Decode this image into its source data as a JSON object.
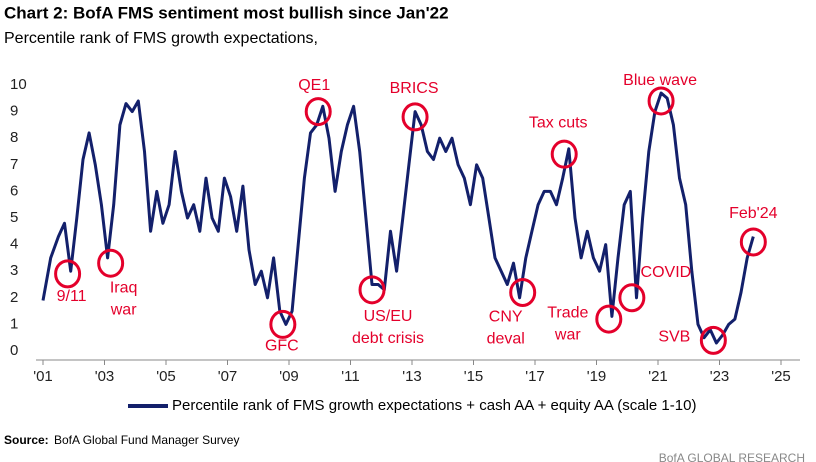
{
  "chart_data": {
    "type": "line",
    "title": "Chart 2: BofA FMS sentiment most bullish since Jan'22",
    "subtitle": "Percentile rank of FMS growth expectations,",
    "xlim": [
      2001,
      2025
    ],
    "xticks": [
      {
        "value": 2001,
        "label": "'01"
      },
      {
        "value": 2003,
        "label": "'03"
      },
      {
        "value": 2005,
        "label": "'05"
      },
      {
        "value": 2007,
        "label": "'07"
      },
      {
        "value": 2009,
        "label": "'09"
      },
      {
        "value": 2011,
        "label": "'11"
      },
      {
        "value": 2013,
        "label": "'13"
      },
      {
        "value": 2015,
        "label": "'15"
      },
      {
        "value": 2017,
        "label": "'17"
      },
      {
        "value": 2019,
        "label": "'19"
      },
      {
        "value": 2021,
        "label": "'21"
      },
      {
        "value": 2023,
        "label": "'23"
      },
      {
        "value": 2025,
        "label": "'25"
      }
    ],
    "ylim": [
      0,
      10
    ],
    "yticks": [
      0,
      1,
      2,
      3,
      4,
      5,
      6,
      7,
      8,
      9,
      10
    ],
    "grid": false,
    "x": [
      2001.0,
      2001.25,
      2001.5,
      2001.7,
      2001.9,
      2002.1,
      2002.3,
      2002.5,
      2002.7,
      2002.9,
      2003.1,
      2003.3,
      2003.5,
      2003.7,
      2003.9,
      2004.1,
      2004.3,
      2004.5,
      2004.7,
      2004.9,
      2005.1,
      2005.3,
      2005.5,
      2005.7,
      2005.9,
      2006.1,
      2006.3,
      2006.5,
      2006.7,
      2006.9,
      2007.1,
      2007.3,
      2007.5,
      2007.7,
      2007.9,
      2008.1,
      2008.3,
      2008.5,
      2008.7,
      2008.9,
      2009.1,
      2009.3,
      2009.5,
      2009.7,
      2009.9,
      2010.1,
      2010.3,
      2010.5,
      2010.7,
      2010.9,
      2011.1,
      2011.3,
      2011.5,
      2011.7,
      2011.9,
      2012.1,
      2012.3,
      2012.5,
      2012.7,
      2012.9,
      2013.1,
      2013.3,
      2013.5,
      2013.7,
      2013.9,
      2014.1,
      2014.3,
      2014.5,
      2014.7,
      2014.9,
      2015.1,
      2015.3,
      2015.5,
      2015.7,
      2015.9,
      2016.1,
      2016.3,
      2016.5,
      2016.7,
      2016.9,
      2017.1,
      2017.3,
      2017.5,
      2017.7,
      2017.9,
      2018.1,
      2018.3,
      2018.5,
      2018.7,
      2018.9,
      2019.1,
      2019.3,
      2019.5,
      2019.7,
      2019.9,
      2020.1,
      2020.3,
      2020.5,
      2020.7,
      2020.9,
      2021.1,
      2021.3,
      2021.5,
      2021.7,
      2021.9,
      2022.1,
      2022.3,
      2022.5,
      2022.7,
      2022.9,
      2023.1,
      2023.3,
      2023.5,
      2023.7,
      2023.9,
      2024.1
    ],
    "series": [
      {
        "name": "Percentile rank of FMS growth expectations + cash AA + equity AA (scale 1-10)",
        "color": "#13206b",
        "values": [
          1.9,
          3.5,
          4.3,
          4.8,
          3.0,
          5.0,
          7.2,
          8.2,
          7.0,
          5.5,
          3.5,
          5.5,
          8.5,
          9.3,
          9.0,
          9.4,
          7.5,
          4.5,
          6.0,
          4.8,
          5.5,
          7.5,
          6.0,
          5.0,
          5.5,
          4.5,
          6.5,
          5.0,
          4.5,
          6.5,
          5.8,
          4.5,
          6.2,
          3.8,
          2.5,
          3.0,
          2.0,
          3.5,
          1.5,
          1.0,
          1.5,
          4.0,
          6.5,
          8.2,
          8.5,
          9.2,
          8.0,
          6.0,
          7.5,
          8.5,
          9.2,
          7.5,
          5.0,
          2.5,
          2.5,
          2.3,
          4.5,
          3.0,
          5.0,
          7.0,
          9.0,
          8.5,
          7.5,
          7.2,
          8.0,
          7.5,
          8.0,
          7.0,
          6.5,
          5.5,
          7.0,
          6.5,
          5.0,
          3.5,
          3.0,
          2.5,
          3.3,
          2.0,
          3.5,
          4.5,
          5.5,
          6.0,
          6.0,
          5.5,
          6.5,
          7.6,
          5.0,
          3.5,
          4.5,
          3.5,
          3.0,
          4.0,
          1.3,
          3.5,
          5.5,
          6.0,
          2.0,
          5.0,
          7.5,
          9.0,
          9.7,
          9.5,
          8.5,
          6.5,
          5.5,
          3.0,
          1.0,
          0.5,
          0.8,
          0.3,
          0.6,
          1.0,
          1.2,
          2.2,
          3.5,
          4.3
        ]
      }
    ],
    "annotations": [
      {
        "lines": [
          "9/11"
        ],
        "x": 2001.8,
        "y": 2.9
      },
      {
        "lines": [
          "Iraq",
          "war"
        ],
        "x": 2003.2,
        "y": 3.3
      },
      {
        "lines": [
          "GFC"
        ],
        "x": 2008.8,
        "y": 1.0
      },
      {
        "lines": [
          "QE1"
        ],
        "x": 2009.95,
        "y": 9.0
      },
      {
        "lines": [
          "US/EU",
          "debt crisis"
        ],
        "x": 2011.7,
        "y": 2.3
      },
      {
        "lines": [
          "BRICS"
        ],
        "x": 2013.1,
        "y": 8.8
      },
      {
        "lines": [
          "CNY",
          "deval"
        ],
        "x": 2016.6,
        "y": 2.2
      },
      {
        "lines": [
          "Tax cuts"
        ],
        "x": 2017.95,
        "y": 7.4
      },
      {
        "lines": [
          "Trade",
          "war"
        ],
        "x": 2019.4,
        "y": 1.2
      },
      {
        "lines": [
          "COVID"
        ],
        "x": 2020.15,
        "y": 2.0
      },
      {
        "lines": [
          "Blue wave"
        ],
        "x": 2021.1,
        "y": 9.4
      },
      {
        "lines": [
          "SVB"
        ],
        "x": 2022.8,
        "y": 0.4
      },
      {
        "lines": [
          "Feb'24"
        ],
        "x": 2024.1,
        "y": 4.1
      }
    ],
    "source_label": "Source:",
    "source": "BofA Global Fund Manager Survey",
    "footer": "BofA GLOBAL RESEARCH"
  }
}
